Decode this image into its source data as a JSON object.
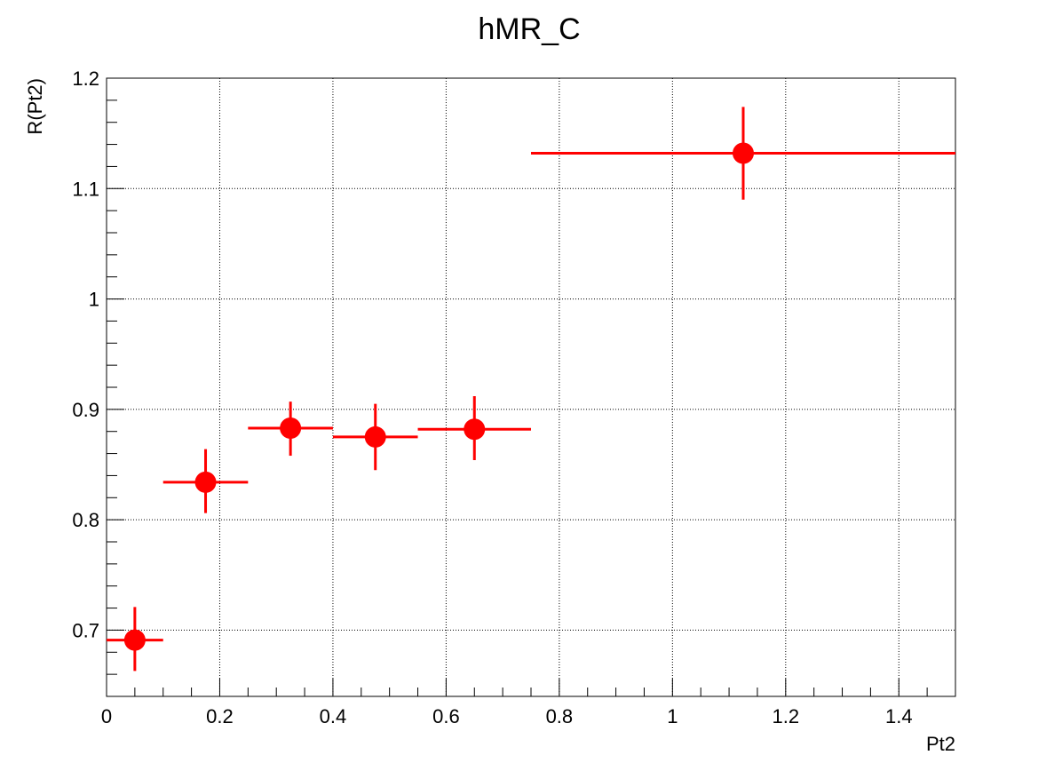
{
  "chart_data": {
    "type": "scatter",
    "title": "hMR_C",
    "xlabel": "Pt2",
    "ylabel": "R(Pt2)",
    "xlim": [
      0,
      1.5
    ],
    "ylim": [
      0.64,
      1.2
    ],
    "xticks": [
      0,
      0.2,
      0.4,
      0.6,
      0.8,
      1,
      1.2,
      1.4
    ],
    "yticks": [
      0.7,
      0.8,
      0.9,
      1,
      1.1,
      1.2
    ],
    "grid": true,
    "series": [
      {
        "color": "#ff0000",
        "points": [
          {
            "x": 0.05,
            "y": 0.691,
            "xlo": 0.0,
            "xhi": 0.1,
            "ylo": 0.663,
            "yhi": 0.721
          },
          {
            "x": 0.175,
            "y": 0.834,
            "xlo": 0.1,
            "xhi": 0.25,
            "ylo": 0.806,
            "yhi": 0.864
          },
          {
            "x": 0.325,
            "y": 0.883,
            "xlo": 0.25,
            "xhi": 0.4,
            "ylo": 0.858,
            "yhi": 0.907
          },
          {
            "x": 0.475,
            "y": 0.875,
            "xlo": 0.4,
            "xhi": 0.55,
            "ylo": 0.845,
            "yhi": 0.905
          },
          {
            "x": 0.65,
            "y": 0.882,
            "xlo": 0.55,
            "xhi": 0.75,
            "ylo": 0.854,
            "yhi": 0.912
          },
          {
            "x": 1.125,
            "y": 1.132,
            "xlo": 0.75,
            "xhi": 1.5,
            "ylo": 1.09,
            "yhi": 1.174
          }
        ]
      }
    ]
  }
}
